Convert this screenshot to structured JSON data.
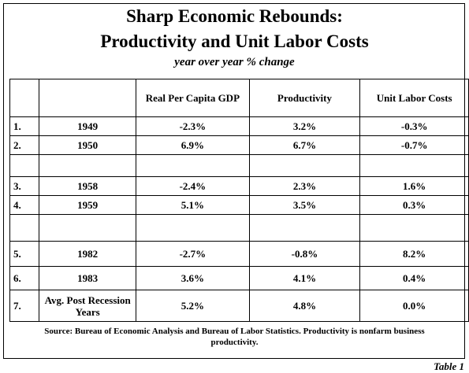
{
  "header": {
    "title_line1": "Sharp Economic Rebounds:",
    "title_line2": "Productivity and Unit Labor Costs",
    "subtitle": "year over year % change"
  },
  "table": {
    "columns": [
      "Real Per Capita GDP",
      "Productivity",
      "Unit Labor Costs"
    ],
    "rows": [
      {
        "number": "1.",
        "label": "1949",
        "cells": [
          "-2.3%",
          "3.2%",
          "-0.3%"
        ]
      },
      {
        "number": "2.",
        "label": "1950",
        "cells": [
          "6.9%",
          "6.7%",
          "-0.7%"
        ]
      },
      {
        "number": "3.",
        "label": "1958",
        "cells": [
          "-2.4%",
          "2.3%",
          "1.6%"
        ]
      },
      {
        "number": "4.",
        "label": "1959",
        "cells": [
          "5.1%",
          "3.5%",
          "0.3%"
        ]
      },
      {
        "number": "5.",
        "label": "1982",
        "cells": [
          "-2.7%",
          "-0.8%",
          "8.2%"
        ]
      },
      {
        "number": "6.",
        "label": "1983",
        "cells": [
          "3.6%",
          "4.1%",
          "0.4%"
        ]
      },
      {
        "number": "7.",
        "label": "Avg. Post Recession Years",
        "cells": [
          "5.2%",
          "4.8%",
          "0.0%"
        ]
      }
    ]
  },
  "footer": {
    "source": "Source: Bureau of Economic Analysis and Bureau of Labor Statistics.  Productivity is nonfarm business productivity.",
    "table_label": "Table 1"
  }
}
